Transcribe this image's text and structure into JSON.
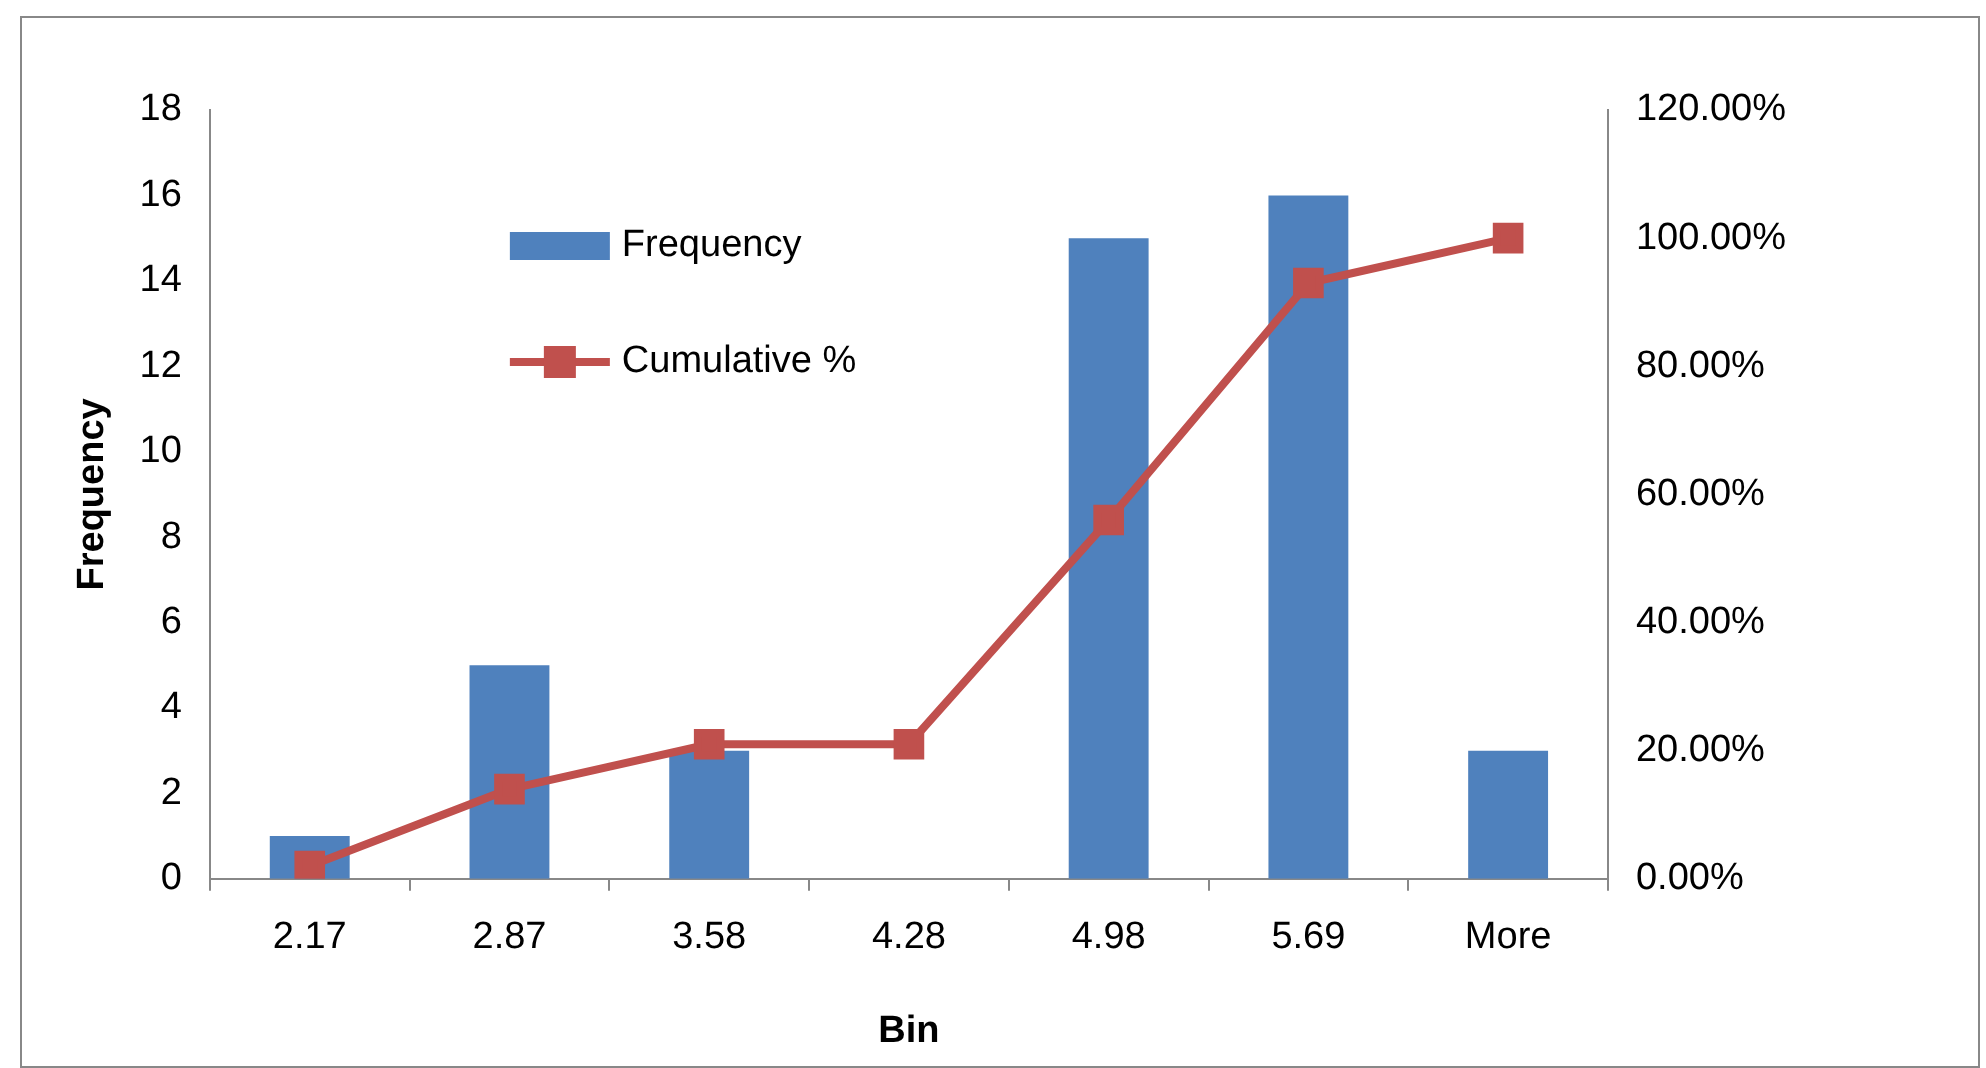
{
  "chart_data": {
    "type": "bar",
    "xlabel": "Bin",
    "ylabel": "Frequency",
    "categories": [
      "2.17",
      "2.87",
      "3.58",
      "4.28",
      "4.98",
      "5.69",
      "More"
    ],
    "series": [
      {
        "name": "Frequency",
        "color": "#4f81bd",
        "values": [
          1,
          5,
          3,
          0,
          15,
          16,
          3
        ]
      },
      {
        "name": "Cumulative %",
        "type": "line",
        "axis": "y2",
        "color": "#c0504d",
        "marker": "square",
        "values": [
          2,
          14,
          21,
          21,
          56,
          93,
          100
        ]
      }
    ],
    "ylim": [
      0,
      18
    ],
    "yticks": [
      0,
      2,
      4,
      6,
      8,
      10,
      12,
      14,
      16,
      18
    ],
    "y2lim": [
      0,
      120
    ],
    "y2ticks": [
      {
        "value": 0,
        "label": "0.00%"
      },
      {
        "value": 20,
        "label": "20.00%"
      },
      {
        "value": 40,
        "label": "40.00%"
      },
      {
        "value": 60,
        "label": "60.00%"
      },
      {
        "value": 80,
        "label": "80.00%"
      },
      {
        "value": 100,
        "label": "100.00%"
      },
      {
        "value": 120,
        "label": "120.00%"
      }
    ],
    "grid": false,
    "legend": "top left"
  }
}
